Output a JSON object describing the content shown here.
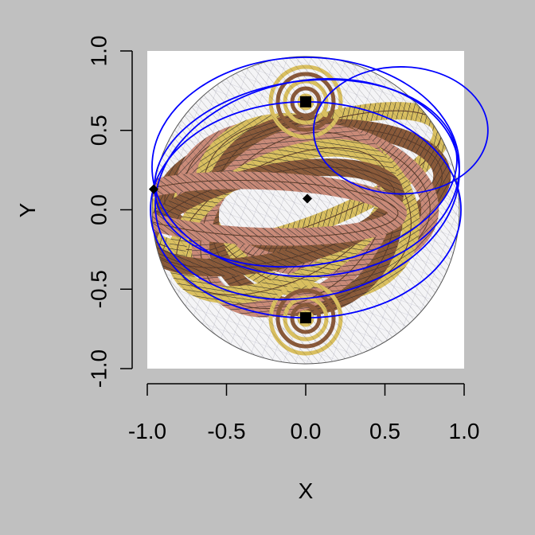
{
  "colors": {
    "background": "#c0c0c0",
    "plot_area": "#ffffff",
    "overlay_curves": "#0000ff",
    "band_yellow": "#d9bf60",
    "band_brown": "#8a5a3a",
    "band_pink": "#c98a78",
    "hatch": "#2a2a2a",
    "markers": "#000000"
  },
  "chart_data": {
    "type": "scatter",
    "title": "",
    "xlabel": "X",
    "ylabel": "Y",
    "xlim": [
      -1.0,
      1.0
    ],
    "ylim": [
      -1.0,
      1.0
    ],
    "x_ticks": [
      -1.0,
      -0.5,
      0.0,
      0.5,
      1.0
    ],
    "y_ticks": [
      -1.0,
      -0.5,
      0.0,
      0.5,
      1.0
    ],
    "x_tick_labels": [
      "-1.0",
      "-0.5",
      "0.0",
      "0.5",
      "1.0"
    ],
    "y_tick_labels": [
      "-1.0",
      "-0.5",
      "0.0",
      "0.5",
      "1.0"
    ],
    "grid": false,
    "legend": "none",
    "background_image": "Escher-style spiral sphere (banded helicoid shell) rendered in the plot region",
    "points": [
      {
        "x": 0.0,
        "y": 0.68,
        "shape": "square"
      },
      {
        "x": 0.0,
        "y": -0.68,
        "shape": "square"
      },
      {
        "x": 0.01,
        "y": 0.07,
        "shape": "diamond"
      },
      {
        "x": -0.96,
        "y": 0.13,
        "shape": "diamond"
      }
    ],
    "curves": [
      {
        "type": "ellipse",
        "cx": 0.0,
        "cy": 0.27,
        "rx": 0.97,
        "ry": 0.69,
        "tilt_deg": 0
      },
      {
        "type": "ellipse",
        "cx": 0.0,
        "cy": 0.23,
        "rx": 0.96,
        "ry": 0.58,
        "tilt_deg": -8
      },
      {
        "type": "ellipse",
        "cx": 0.01,
        "cy": 0.13,
        "rx": 0.97,
        "ry": 0.68,
        "tilt_deg": -12
      },
      {
        "type": "ellipse",
        "cx": 0.0,
        "cy": 0.0,
        "rx": 0.98,
        "ry": 0.68,
        "tilt_deg": 0
      },
      {
        "type": "ellipse",
        "cx": 0.6,
        "cy": 0.5,
        "rx": 0.55,
        "ry": 0.4,
        "tilt_deg": 0
      }
    ]
  }
}
